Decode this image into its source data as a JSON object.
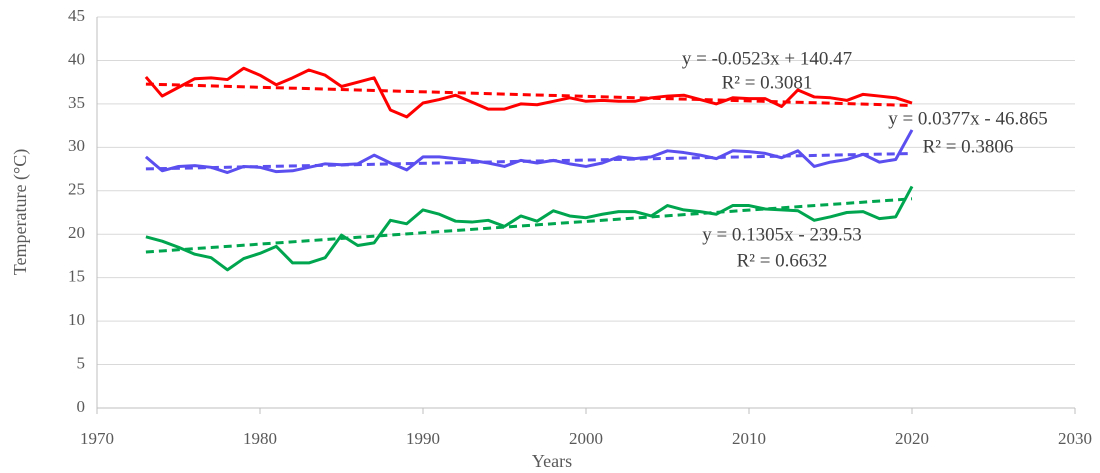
{
  "chart_data": {
    "type": "line",
    "x_label": "Years",
    "y_label": "Temperature (°C)",
    "x": [
      1973,
      1974,
      1975,
      1976,
      1977,
      1978,
      1979,
      1980,
      1981,
      1982,
      1983,
      1984,
      1985,
      1986,
      1987,
      1988,
      1989,
      1990,
      1991,
      1992,
      1993,
      1994,
      1995,
      1996,
      1997,
      1998,
      1999,
      2000,
      2001,
      2002,
      2003,
      2004,
      2005,
      2006,
      2007,
      2008,
      2009,
      2010,
      2011,
      2012,
      2013,
      2014,
      2015,
      2016,
      2017,
      2018,
      2019,
      2020
    ],
    "trend_x": [
      1973,
      2020
    ],
    "series": [
      {
        "color": "#ff0000",
        "values": [
          38.1,
          35.9,
          36.9,
          37.9,
          38.0,
          37.8,
          39.1,
          38.3,
          37.2,
          38.0,
          38.9,
          38.3,
          37.0,
          37.5,
          38.0,
          34.3,
          33.5,
          35.1,
          35.5,
          36.0,
          35.2,
          34.4,
          34.4,
          35.0,
          34.9,
          35.3,
          35.7,
          35.3,
          35.4,
          35.3,
          35.3,
          35.7,
          35.9,
          36.0,
          35.5,
          35.0,
          35.7,
          35.6,
          35.6,
          34.7,
          36.6,
          35.8,
          35.7,
          35.4,
          36.1,
          35.9,
          35.7,
          35.1
        ],
        "trend": [
          37.28,
          34.82
        ]
      },
      {
        "color": "#5b4ff0",
        "values": [
          28.9,
          27.3,
          27.8,
          27.9,
          27.7,
          27.1,
          27.8,
          27.7,
          27.2,
          27.3,
          27.7,
          28.1,
          28.0,
          28.1,
          29.1,
          28.2,
          27.4,
          28.9,
          28.9,
          28.7,
          28.5,
          28.2,
          27.8,
          28.5,
          28.2,
          28.5,
          28.1,
          27.8,
          28.2,
          28.9,
          28.7,
          28.9,
          29.6,
          29.4,
          29.1,
          28.7,
          29.6,
          29.5,
          29.3,
          28.8,
          29.6,
          27.8,
          28.3,
          28.6,
          29.2,
          28.3,
          28.6,
          32.0
        ],
        "trend": [
          27.52,
          29.29
        ]
      },
      {
        "color": "#00a64f",
        "values": [
          19.7,
          19.2,
          18.5,
          17.7,
          17.3,
          15.9,
          17.2,
          17.8,
          18.6,
          16.7,
          16.7,
          17.3,
          19.9,
          18.7,
          19.0,
          21.6,
          21.2,
          22.8,
          22.3,
          21.5,
          21.4,
          21.6,
          20.9,
          22.1,
          21.5,
          22.7,
          22.1,
          21.9,
          22.3,
          22.6,
          22.6,
          22.1,
          23.3,
          22.8,
          22.6,
          22.3,
          23.3,
          23.3,
          22.9,
          22.8,
          22.7,
          21.6,
          22.0,
          22.5,
          22.6,
          21.8,
          22.0,
          25.5
        ],
        "trend": [
          17.95,
          24.08
        ]
      }
    ],
    "annotations": [
      {
        "equation": "y = -0.0523x + 140.47",
        "r2": "R² = 0.3081"
      },
      {
        "equation": "y = 0.0377x - 46.865",
        "r2": "R² = 0.3806"
      },
      {
        "equation": "y = 0.1305x - 239.53",
        "r2": "R² = 0.6632"
      }
    ],
    "xlim": [
      1970,
      2030
    ],
    "xticks": [
      1970,
      1980,
      1990,
      2000,
      2010,
      2020,
      2030
    ],
    "ylim": [
      0,
      45
    ],
    "yticks": [
      0,
      5,
      10,
      15,
      20,
      25,
      30,
      35,
      40,
      45
    ],
    "grid": true
  }
}
